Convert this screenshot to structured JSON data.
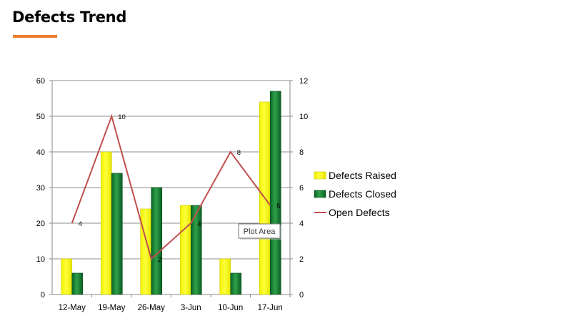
{
  "page": {
    "title": "Defects Trend",
    "accent_color": "#ED7D31"
  },
  "chart_data": {
    "type": "bar",
    "categories": [
      "12-May",
      "19-May",
      "26-May",
      "3-Jun",
      "10-Jun",
      "17-Jun"
    ],
    "series": [
      {
        "name": "Defects Raised",
        "kind": "bar",
        "axis": "left",
        "values": [
          10,
          40,
          24,
          25,
          10,
          54
        ],
        "color": "#FFFF00"
      },
      {
        "name": "Defects Closed",
        "kind": "bar",
        "axis": "left",
        "values": [
          6,
          34,
          30,
          25,
          6,
          57
        ],
        "color": "#0E7A2E"
      },
      {
        "name": "Open Defects",
        "kind": "line",
        "axis": "right",
        "values": [
          4,
          10,
          2,
          4,
          8,
          5
        ],
        "color": "#C0504D",
        "data_labels": [
          "4",
          "10",
          "2",
          "4",
          "8",
          "5"
        ]
      }
    ],
    "y_left": {
      "lim": [
        0,
        60
      ],
      "ticks": [
        "0",
        "10",
        "20",
        "30",
        "40",
        "50",
        "60"
      ]
    },
    "y_right": {
      "lim": [
        0,
        12
      ],
      "ticks": [
        "0",
        "2",
        "4",
        "6",
        "8",
        "10",
        "12"
      ]
    },
    "grid": true,
    "legend_position": "right",
    "tooltip": "Plot Area"
  }
}
